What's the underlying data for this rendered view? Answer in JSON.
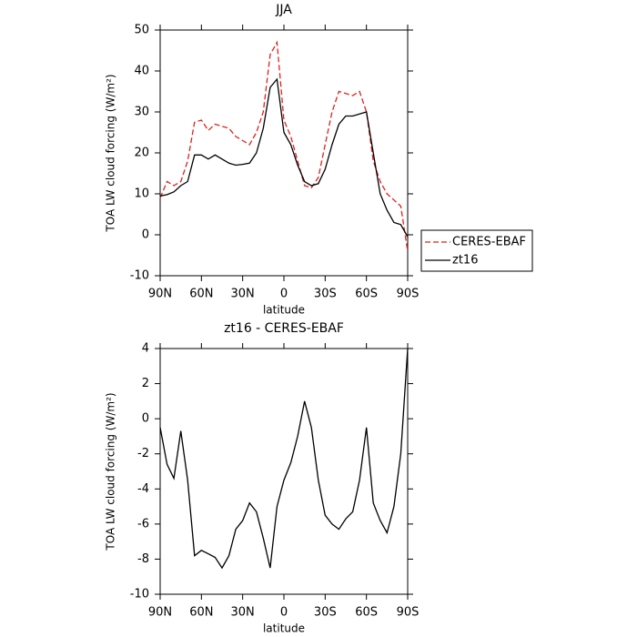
{
  "chart_data": [
    {
      "type": "line",
      "title": "JJA",
      "xlabel": "latitude",
      "ylabel": "TOA LW cloud forcing (W/m²)",
      "x": [
        90,
        85,
        80,
        75,
        70,
        65,
        60,
        55,
        50,
        45,
        40,
        35,
        30,
        25,
        20,
        15,
        10,
        5,
        0,
        -5,
        -10,
        -15,
        -20,
        -25,
        -30,
        -35,
        -40,
        -45,
        -50,
        -55,
        -60,
        -65,
        -70,
        -75,
        -80,
        -85,
        -90
      ],
      "series": [
        {
          "name": "CERES-EBAF",
          "color": "#e02020",
          "dash": true,
          "values": [
            9,
            13,
            12,
            13,
            18,
            27.5,
            28,
            25.5,
            27,
            26.5,
            26,
            24,
            23,
            22,
            25,
            30,
            44,
            47,
            28,
            24,
            18,
            12,
            11.5,
            14,
            22,
            30,
            35,
            34.5,
            34,
            35,
            30,
            18,
            13,
            10,
            8.5,
            7,
            -4
          ]
        },
        {
          "name": "zt16",
          "color": "#000000",
          "dash": false,
          "values": [
            9.5,
            9.8,
            10.5,
            12,
            13,
            19.5,
            19.5,
            18.5,
            19.5,
            18.5,
            17.5,
            17,
            17.2,
            17.5,
            20,
            26,
            36,
            38,
            25,
            22,
            17,
            13,
            12,
            12.5,
            16,
            22,
            27,
            29,
            29,
            29.5,
            30,
            20,
            10,
            6,
            3,
            2.5,
            -0.5
          ]
        }
      ],
      "xlim": [
        90,
        -90
      ],
      "ylim": [
        -10,
        50
      ],
      "xticks": [
        {
          "value": 90,
          "label": "90N"
        },
        {
          "value": 60,
          "label": "60N"
        },
        {
          "value": 30,
          "label": "30N"
        },
        0,
        {
          "value": -30,
          "label": "30S"
        },
        {
          "value": -60,
          "label": "60S"
        },
        {
          "value": -90,
          "label": "90S"
        }
      ],
      "yticks": [
        -10,
        0,
        10,
        20,
        30,
        40,
        50
      ],
      "legend": "right"
    },
    {
      "type": "line",
      "title": "zt16 - CERES-EBAF",
      "xlabel": "latitude",
      "ylabel": "TOA LW cloud forcing (W/m²)",
      "x": [
        90,
        85,
        80,
        75,
        70,
        65,
        60,
        55,
        50,
        45,
        40,
        35,
        30,
        25,
        20,
        15,
        10,
        5,
        0,
        -5,
        -10,
        -15,
        -20,
        -25,
        -30,
        -35,
        -40,
        -45,
        -50,
        -55,
        -60,
        -65,
        -70,
        -75,
        -80,
        -85,
        -90
      ],
      "series": [
        {
          "name": "zt16 - CERES-EBAF",
          "color": "#000000",
          "dash": false,
          "values": [
            -0.5,
            -2.6,
            -3.4,
            -0.7,
            -3.5,
            -7.8,
            -7.5,
            -7.7,
            -7.9,
            -8.5,
            -7.8,
            -6.3,
            -5.8,
            -4.8,
            -5.3,
            -6.8,
            -8.5,
            -5,
            -3.5,
            -2.5,
            -1,
            1,
            -0.5,
            -3.5,
            -5.5,
            -6,
            -6.3,
            -5.7,
            -5.3,
            -3.5,
            -0.5,
            -4.8,
            -5.8,
            -6.5,
            -5,
            -2,
            4
          ]
        }
      ],
      "xlim": [
        90,
        -90
      ],
      "ylim": [
        -10,
        4
      ],
      "xticks": [
        {
          "value": 90,
          "label": "90N"
        },
        {
          "value": 60,
          "label": "60N"
        },
        {
          "value": 30,
          "label": "30N"
        },
        0,
        {
          "value": -30,
          "label": "30S"
        },
        {
          "value": -60,
          "label": "60S"
        },
        {
          "value": -90,
          "label": "90S"
        }
      ],
      "yticks": [
        -10,
        -8,
        -6,
        -4,
        -2,
        0,
        2,
        4
      ]
    }
  ]
}
